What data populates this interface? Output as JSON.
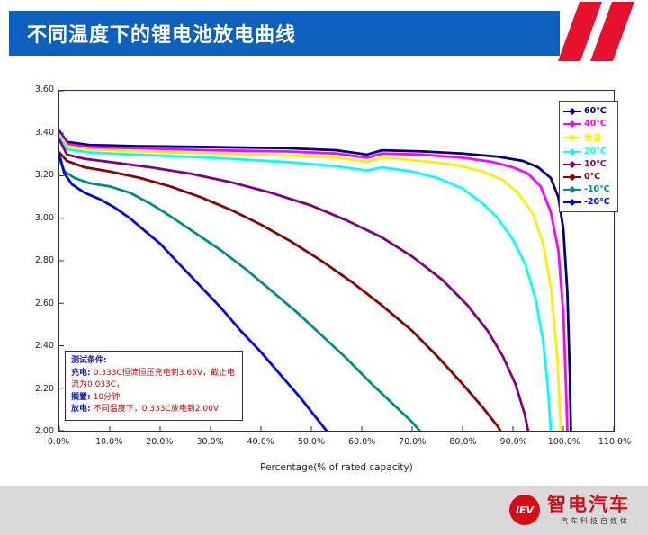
{
  "header": {
    "title": "不同温度下的锂电池放电曲线"
  },
  "chart_data": {
    "type": "line",
    "title": "不同温度下的锂电池放电曲线",
    "xlabel": "Percentage(% of rated capacity)",
    "ylabel": "",
    "xlim": [
      0,
      110
    ],
    "ylim": [
      2.0,
      3.6
    ],
    "grid": false,
    "legend_position": "inside-top-right",
    "x_ticks": [
      "0.0%",
      "10.0%",
      "20.0%",
      "30.0%",
      "40.0%",
      "50.0%",
      "60.0%",
      "70.0%",
      "80.0%",
      "90.0%",
      "100.0%",
      "110.0%"
    ],
    "y_ticks": [
      "3.60",
      "3.40",
      "3.20",
      "3.00",
      "2.80",
      "2.60",
      "2.40",
      "2.20",
      "2.00"
    ],
    "series": [
      {
        "name": "60℃",
        "color": "#000080",
        "points": [
          [
            0,
            3.41
          ],
          [
            1.5,
            3.36
          ],
          [
            6,
            3.345
          ],
          [
            15,
            3.34
          ],
          [
            30,
            3.335
          ],
          [
            45,
            3.33
          ],
          [
            55,
            3.32
          ],
          [
            61,
            3.3
          ],
          [
            64,
            3.32
          ],
          [
            72,
            3.315
          ],
          [
            80,
            3.305
          ],
          [
            87,
            3.29
          ],
          [
            92,
            3.27
          ],
          [
            95,
            3.24
          ],
          [
            97.5,
            3.19
          ],
          [
            99,
            3.1
          ],
          [
            100,
            2.95
          ],
          [
            100.8,
            2.65
          ],
          [
            101.3,
            2.25
          ],
          [
            101.5,
            2.0
          ]
        ]
      },
      {
        "name": "40℃",
        "color": "#FF00FF",
        "points": [
          [
            0,
            3.4
          ],
          [
            1.5,
            3.35
          ],
          [
            6,
            3.335
          ],
          [
            15,
            3.33
          ],
          [
            30,
            3.32
          ],
          [
            45,
            3.315
          ],
          [
            55,
            3.305
          ],
          [
            61,
            3.285
          ],
          [
            64,
            3.305
          ],
          [
            72,
            3.3
          ],
          [
            80,
            3.285
          ],
          [
            86,
            3.265
          ],
          [
            90,
            3.24
          ],
          [
            93,
            3.21
          ],
          [
            95.5,
            3.15
          ],
          [
            97.5,
            3.03
          ],
          [
            99,
            2.85
          ],
          [
            100,
            2.55
          ],
          [
            100.6,
            2.15
          ],
          [
            100.8,
            2.0
          ]
        ]
      },
      {
        "name": "常温",
        "color": "#FFEE00",
        "points": [
          [
            0,
            3.39
          ],
          [
            1.5,
            3.34
          ],
          [
            6,
            3.325
          ],
          [
            15,
            3.315
          ],
          [
            30,
            3.305
          ],
          [
            45,
            3.295
          ],
          [
            55,
            3.285
          ],
          [
            61,
            3.265
          ],
          [
            64,
            3.285
          ],
          [
            72,
            3.27
          ],
          [
            79,
            3.25
          ],
          [
            84,
            3.22
          ],
          [
            88,
            3.18
          ],
          [
            91,
            3.12
          ],
          [
            94,
            3.02
          ],
          [
            96,
            2.88
          ],
          [
            97.5,
            2.68
          ],
          [
            98.8,
            2.35
          ],
          [
            99.5,
            2.0
          ]
        ]
      },
      {
        "name": "20℃",
        "color": "#00FFFF",
        "points": [
          [
            0,
            3.38
          ],
          [
            1.5,
            3.325
          ],
          [
            6,
            3.31
          ],
          [
            15,
            3.3
          ],
          [
            30,
            3.285
          ],
          [
            45,
            3.265
          ],
          [
            55,
            3.245
          ],
          [
            61,
            3.225
          ],
          [
            64,
            3.24
          ],
          [
            70,
            3.22
          ],
          [
            75,
            3.19
          ],
          [
            80,
            3.14
          ],
          [
            84,
            3.07
          ],
          [
            87,
            3.0
          ],
          [
            90,
            2.9
          ],
          [
            92.5,
            2.78
          ],
          [
            94.5,
            2.62
          ],
          [
            96,
            2.42
          ],
          [
            97,
            2.18
          ],
          [
            97.5,
            2.0
          ]
        ]
      },
      {
        "name": "10℃",
        "color": "#800080",
        "points": [
          [
            0,
            3.37
          ],
          [
            1.5,
            3.3
          ],
          [
            5,
            3.28
          ],
          [
            10,
            3.265
          ],
          [
            18,
            3.24
          ],
          [
            26,
            3.21
          ],
          [
            34,
            3.17
          ],
          [
            42,
            3.12
          ],
          [
            50,
            3.06
          ],
          [
            57,
            2.99
          ],
          [
            64,
            2.91
          ],
          [
            70,
            2.82
          ],
          [
            76,
            2.71
          ],
          [
            81,
            2.59
          ],
          [
            85,
            2.47
          ],
          [
            88,
            2.35
          ],
          [
            90.5,
            2.22
          ],
          [
            92.3,
            2.08
          ],
          [
            93,
            2.0
          ]
        ]
      },
      {
        "name": "0℃",
        "color": "#8B0000",
        "points": [
          [
            0,
            3.31
          ],
          [
            1.5,
            3.27
          ],
          [
            5,
            3.24
          ],
          [
            10,
            3.22
          ],
          [
            16,
            3.19
          ],
          [
            22,
            3.15
          ],
          [
            28,
            3.1
          ],
          [
            34,
            3.04
          ],
          [
            40,
            2.97
          ],
          [
            46,
            2.89
          ],
          [
            52,
            2.8
          ],
          [
            58,
            2.7
          ],
          [
            64,
            2.59
          ],
          [
            70,
            2.47
          ],
          [
            75,
            2.35
          ],
          [
            80,
            2.22
          ],
          [
            84,
            2.11
          ],
          [
            87,
            2.02
          ],
          [
            87.5,
            2.0
          ]
        ]
      },
      {
        "name": "-10℃",
        "color": "#008B8B",
        "points": [
          [
            0,
            3.28
          ],
          [
            1,
            3.22
          ],
          [
            3,
            3.19
          ],
          [
            6,
            3.165
          ],
          [
            10,
            3.15
          ],
          [
            14,
            3.12
          ],
          [
            18,
            3.07
          ],
          [
            22,
            3.01
          ],
          [
            27,
            2.93
          ],
          [
            32,
            2.85
          ],
          [
            37,
            2.76
          ],
          [
            42,
            2.66
          ],
          [
            47,
            2.56
          ],
          [
            52,
            2.45
          ],
          [
            57,
            2.34
          ],
          [
            62,
            2.22
          ],
          [
            66,
            2.13
          ],
          [
            70,
            2.04
          ],
          [
            71.5,
            2.0
          ]
        ]
      },
      {
        "name": "-20℃",
        "color": "#0000EE",
        "points": [
          [
            0,
            3.3
          ],
          [
            1,
            3.21
          ],
          [
            2.5,
            3.16
          ],
          [
            5,
            3.12
          ],
          [
            8,
            3.09
          ],
          [
            11,
            3.05
          ],
          [
            14,
            3.0
          ],
          [
            17,
            2.94
          ],
          [
            20,
            2.88
          ],
          [
            24,
            2.78
          ],
          [
            28,
            2.68
          ],
          [
            32,
            2.58
          ],
          [
            36,
            2.47
          ],
          [
            40,
            2.37
          ],
          [
            44,
            2.26
          ],
          [
            48,
            2.15
          ],
          [
            51,
            2.06
          ],
          [
            53,
            2.0
          ]
        ]
      }
    ]
  },
  "annotation": {
    "lines": [
      {
        "label": "测试条件:",
        "text": ""
      },
      {
        "label": "充电:",
        "text": "0.333C恒流恒压充电到3.65V，截止电流为0.033C，"
      },
      {
        "label": "搁置:",
        "text": "10分钟"
      },
      {
        "label": "放电:",
        "text": "不同温度下，0.333C放电到2.00V"
      }
    ]
  },
  "footer": {
    "logo_badge": "IEV",
    "brand": "智电汽车",
    "tagline": "汽车科技自媒体"
  }
}
